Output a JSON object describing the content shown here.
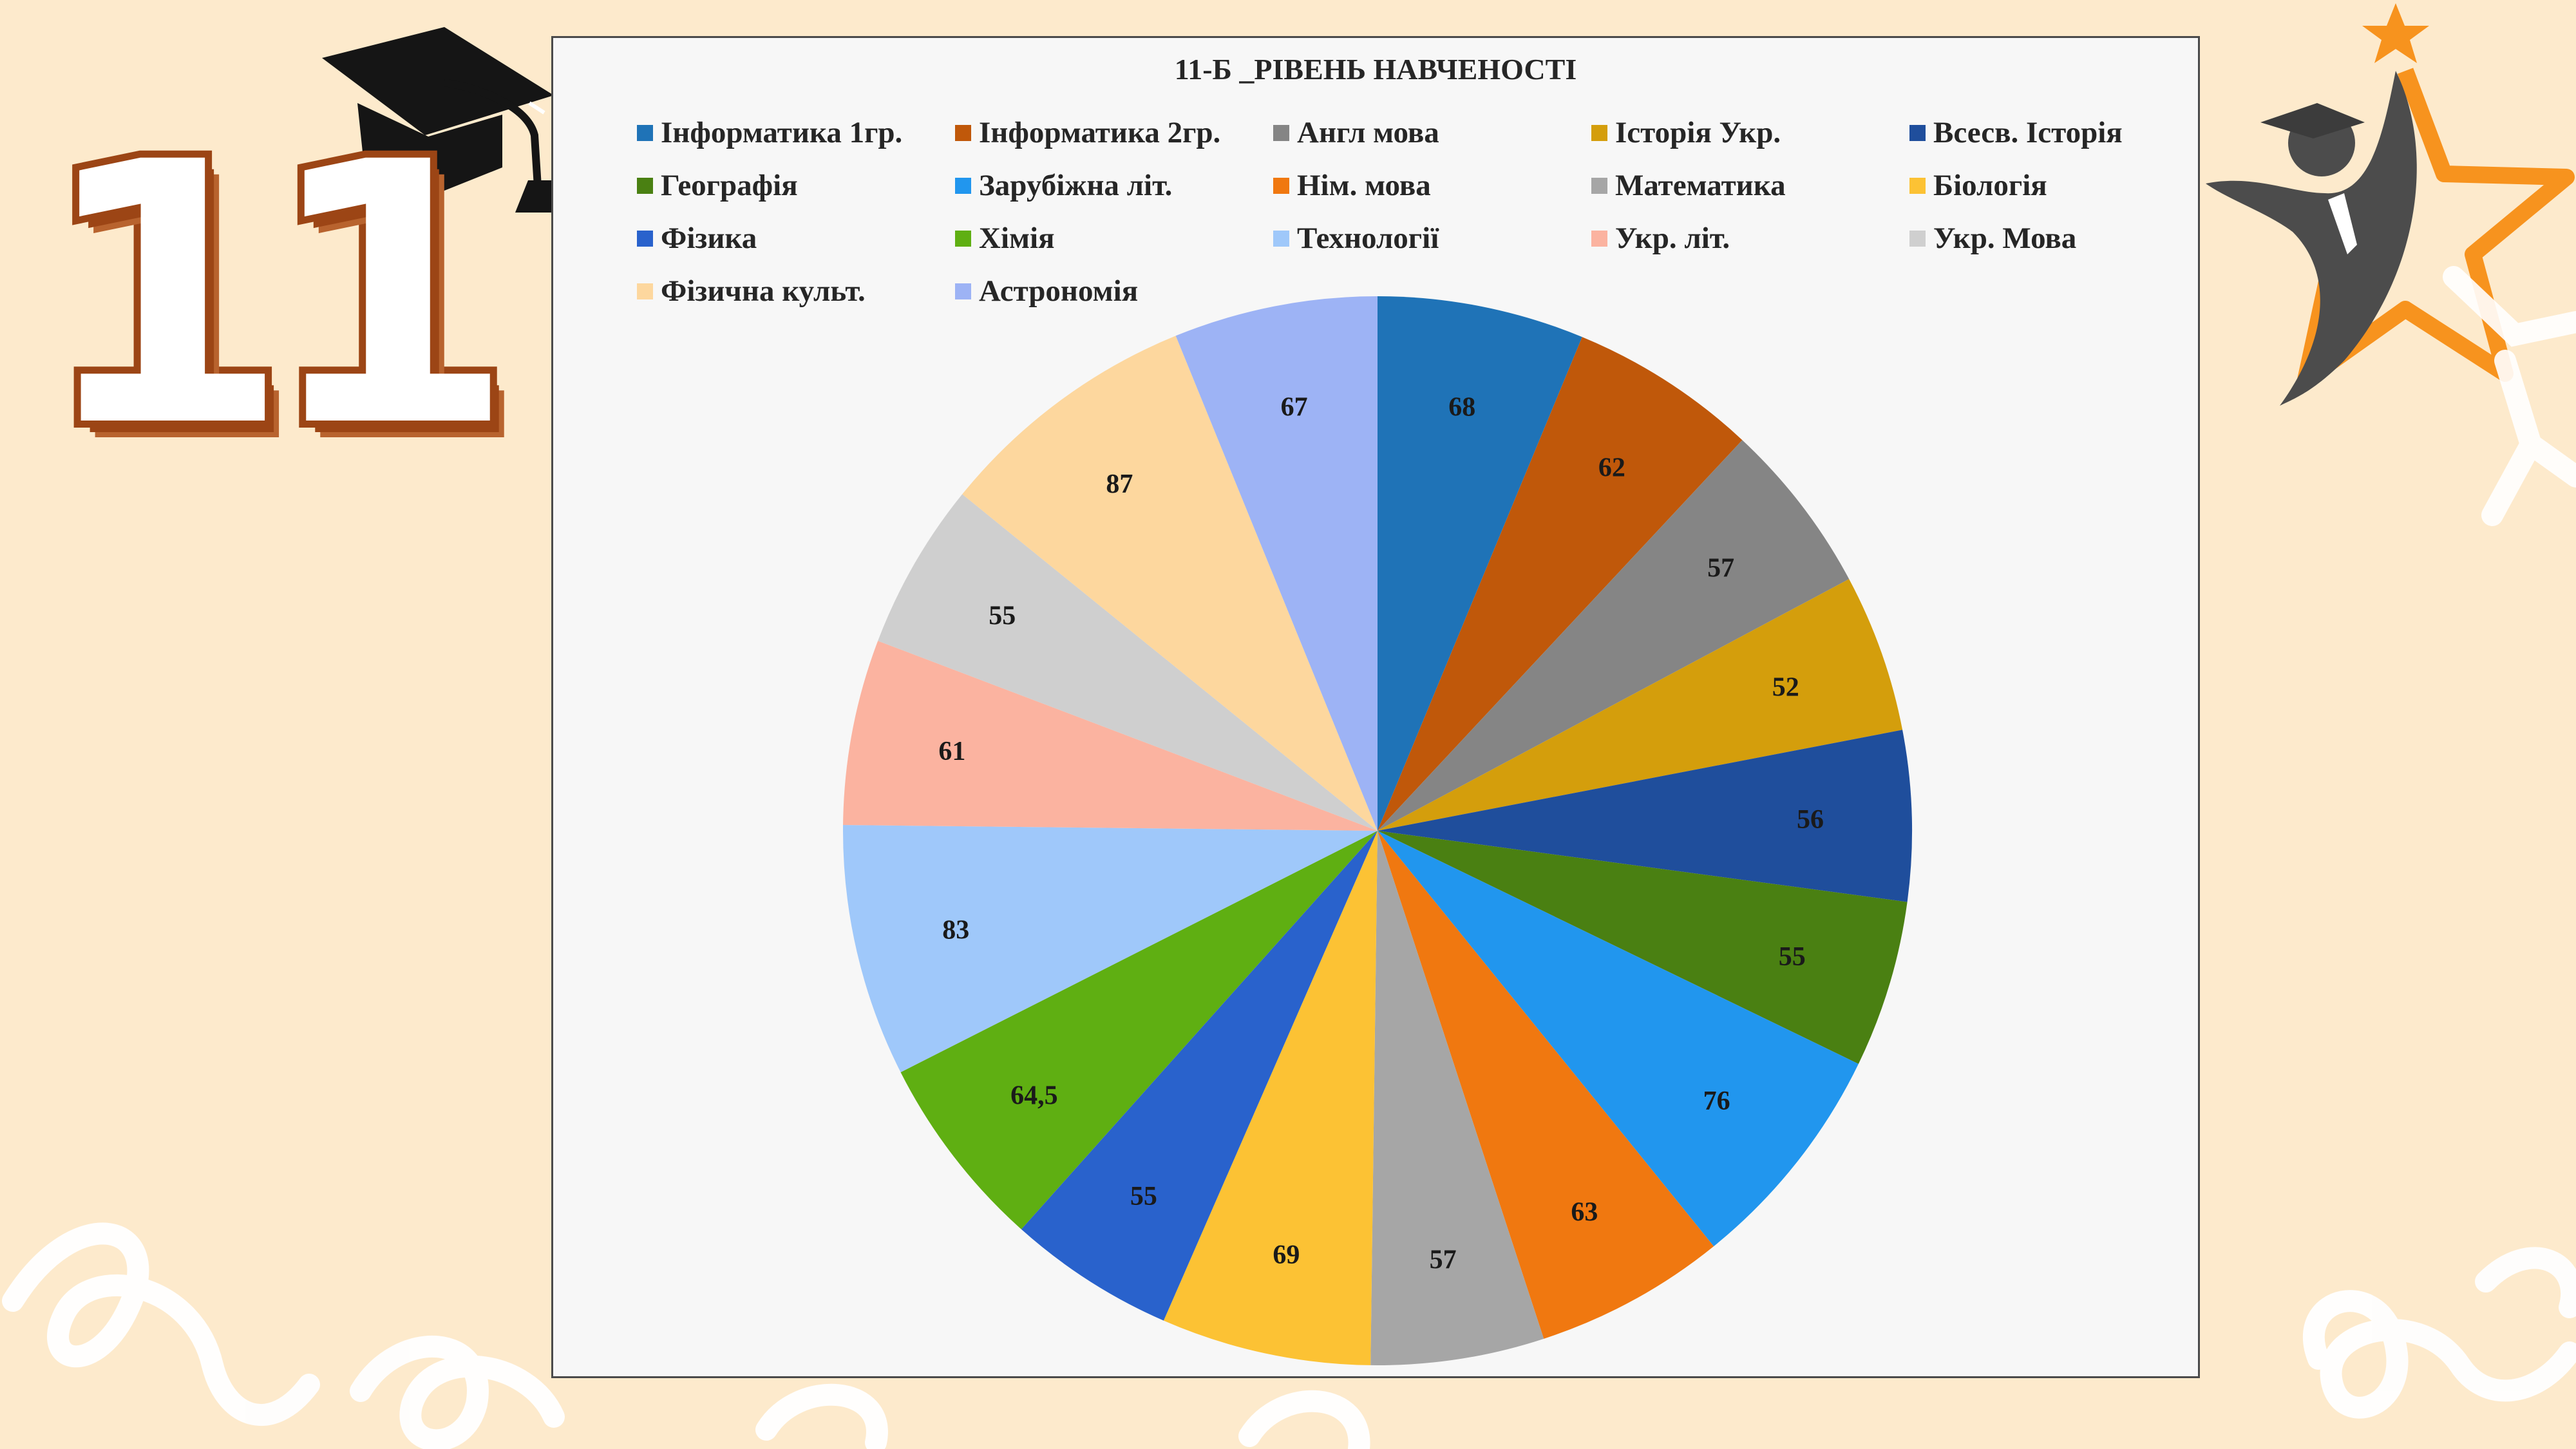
{
  "slide": {
    "grade_number": "11",
    "background_color": "#fdeacc",
    "accent_color": "#9c4515",
    "star_color": "#f7931e"
  },
  "chart_data": {
    "type": "pie",
    "title": "11-Б _РІВЕНЬ НАВЧЕНОСТІ",
    "legend_position": "top",
    "categories": [
      "Інформатика 1гр.",
      "Інформатика 2гр.",
      "Англ мова",
      "Історія Укр.",
      "Всесв. Історія",
      "Географія",
      "Зарубіжна літ.",
      "Нім. мова",
      "Математика",
      "Біологія",
      "Фізика",
      "Хімія",
      "Технології",
      "Укр. літ.",
      "Укр. Мова",
      "Фізична культ.",
      "Астрономія"
    ],
    "values": [
      68,
      62,
      57,
      52,
      56,
      55,
      76,
      63,
      57,
      69,
      55,
      64.5,
      83,
      61,
      55,
      87,
      67
    ],
    "data_labels": [
      "68",
      "62",
      "57",
      "52",
      "56",
      "55",
      "76",
      "63",
      "57",
      "69",
      "55",
      "64,5",
      "83",
      "61",
      "55",
      "87",
      "67"
    ],
    "colors": [
      "#1f73b7",
      "#c0580a",
      "#858585",
      "#d49e0c",
      "#1f4e9c",
      "#4a8012",
      "#2196ee",
      "#f07810",
      "#a6a6a6",
      "#fcc234",
      "#2962cc",
      "#5faf12",
      "#9fc8fa",
      "#fbb3a0",
      "#cfcfcf",
      "#fdd79e",
      "#9db3f5"
    ]
  }
}
